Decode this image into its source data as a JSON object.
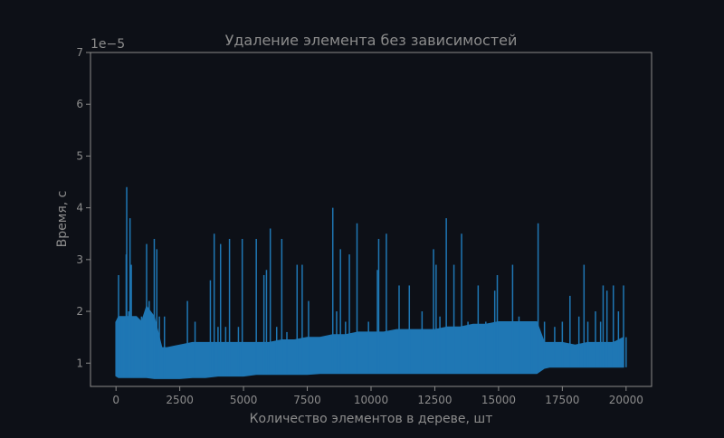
{
  "chart_data": {
    "type": "line",
    "title": "Удаление элемента без зависимостей",
    "xlabel": "Количество элементов в дереве, шт",
    "ylabel": "Время, с",
    "y_offset_label": "1e−5",
    "y_scale_factor": 1e-05,
    "xlim": [
      -1000,
      21000
    ],
    "ylim": [
      0.55,
      7.0
    ],
    "x_ticks": [
      0,
      2500,
      5000,
      7500,
      10000,
      12500,
      15000,
      17500,
      20000
    ],
    "x_tick_labels": [
      "0",
      "2500",
      "5000",
      "7500",
      "10000",
      "12500",
      "15000",
      "17500",
      "20000"
    ],
    "y_ticks": [
      1,
      2,
      3,
      4,
      5,
      6,
      7
    ],
    "y_tick_labels": [
      "1",
      "2",
      "3",
      "4",
      "5",
      "6",
      "7"
    ],
    "grid": false,
    "legend": null,
    "series": [
      {
        "color": "#1f77b4",
        "x_range": [
          0,
          20000
        ],
        "envelope": {
          "x": [
            0,
            100,
            300,
            500,
            800,
            1000,
            1200,
            1500,
            1800,
            2000,
            2500,
            3000,
            3500,
            4000,
            4500,
            5000,
            5500,
            6000,
            6500,
            7000,
            7500,
            8000,
            8500,
            9000,
            9500,
            10000,
            10500,
            11000,
            11500,
            12000,
            12500,
            13000,
            13500,
            14000,
            14500,
            15000,
            15500,
            16000,
            16500,
            16800,
            17000,
            17500,
            18000,
            18500,
            19000,
            19500,
            19900
          ],
          "low": [
            0.75,
            0.72,
            0.72,
            0.72,
            0.72,
            0.72,
            0.72,
            0.7,
            0.7,
            0.7,
            0.7,
            0.72,
            0.72,
            0.75,
            0.75,
            0.75,
            0.78,
            0.78,
            0.78,
            0.78,
            0.78,
            0.8,
            0.8,
            0.8,
            0.8,
            0.8,
            0.8,
            0.8,
            0.8,
            0.8,
            0.8,
            0.8,
            0.8,
            0.8,
            0.8,
            0.8,
            0.8,
            0.8,
            0.8,
            0.9,
            0.92,
            0.92,
            0.92,
            0.92,
            0.92,
            0.92,
            0.92
          ],
          "high": [
            1.8,
            1.9,
            1.9,
            1.9,
            1.9,
            1.8,
            2.1,
            1.9,
            1.3,
            1.3,
            1.35,
            1.4,
            1.4,
            1.4,
            1.4,
            1.4,
            1.4,
            1.4,
            1.45,
            1.45,
            1.5,
            1.5,
            1.55,
            1.55,
            1.6,
            1.6,
            1.6,
            1.65,
            1.65,
            1.65,
            1.65,
            1.7,
            1.7,
            1.75,
            1.75,
            1.8,
            1.8,
            1.8,
            1.8,
            1.4,
            1.4,
            1.4,
            1.35,
            1.4,
            1.4,
            1.4,
            1.5
          ]
        },
        "spikes": [
          [
            100,
            2.7
          ],
          [
            200,
            1.9
          ],
          [
            300,
            1.8
          ],
          [
            400,
            3.1
          ],
          [
            420,
            4.4
          ],
          [
            500,
            2.0
          ],
          [
            550,
            3.8
          ],
          [
            600,
            2.9
          ],
          [
            700,
            1.9
          ],
          [
            1000,
            1.9
          ],
          [
            1200,
            3.3
          ],
          [
            1300,
            2.2
          ],
          [
            1500,
            3.4
          ],
          [
            1600,
            3.2
          ],
          [
            1700,
            1.9
          ],
          [
            1900,
            1.9
          ],
          [
            2800,
            2.2
          ],
          [
            3100,
            1.8
          ],
          [
            3700,
            2.6
          ],
          [
            3850,
            3.5
          ],
          [
            4000,
            1.7
          ],
          [
            4100,
            3.3
          ],
          [
            4300,
            1.7
          ],
          [
            4450,
            3.4
          ],
          [
            4800,
            1.7
          ],
          [
            4950,
            3.4
          ],
          [
            5500,
            3.4
          ],
          [
            5800,
            2.7
          ],
          [
            5900,
            2.8
          ],
          [
            6050,
            3.6
          ],
          [
            6300,
            1.7
          ],
          [
            6500,
            3.4
          ],
          [
            6700,
            1.6
          ],
          [
            7100,
            2.9
          ],
          [
            7300,
            2.9
          ],
          [
            7550,
            2.2
          ],
          [
            8500,
            4.0
          ],
          [
            8650,
            2.0
          ],
          [
            8800,
            3.2
          ],
          [
            9000,
            1.8
          ],
          [
            9150,
            3.1
          ],
          [
            9450,
            3.7
          ],
          [
            9900,
            1.8
          ],
          [
            10250,
            2.8
          ],
          [
            10300,
            3.4
          ],
          [
            10600,
            3.5
          ],
          [
            11100,
            2.5
          ],
          [
            11500,
            2.5
          ],
          [
            12000,
            2.0
          ],
          [
            12450,
            3.2
          ],
          [
            12550,
            2.9
          ],
          [
            12700,
            1.9
          ],
          [
            12950,
            3.8
          ],
          [
            13250,
            2.9
          ],
          [
            13550,
            3.5
          ],
          [
            13800,
            1.8
          ],
          [
            14200,
            2.5
          ],
          [
            14500,
            1.8
          ],
          [
            14850,
            2.4
          ],
          [
            14950,
            2.7
          ],
          [
            15550,
            2.9
          ],
          [
            15800,
            1.9
          ],
          [
            16300,
            1.8
          ],
          [
            16550,
            3.7
          ],
          [
            16800,
            1.8
          ],
          [
            17200,
            1.7
          ],
          [
            17500,
            1.8
          ],
          [
            17800,
            2.3
          ],
          [
            18150,
            1.9
          ],
          [
            18350,
            2.9
          ],
          [
            18500,
            1.8
          ],
          [
            18800,
            2.0
          ],
          [
            19000,
            1.8
          ],
          [
            19100,
            2.5
          ],
          [
            19250,
            2.4
          ],
          [
            19500,
            2.5
          ],
          [
            19700,
            2.0
          ],
          [
            19900,
            2.5
          ]
        ]
      }
    ]
  }
}
